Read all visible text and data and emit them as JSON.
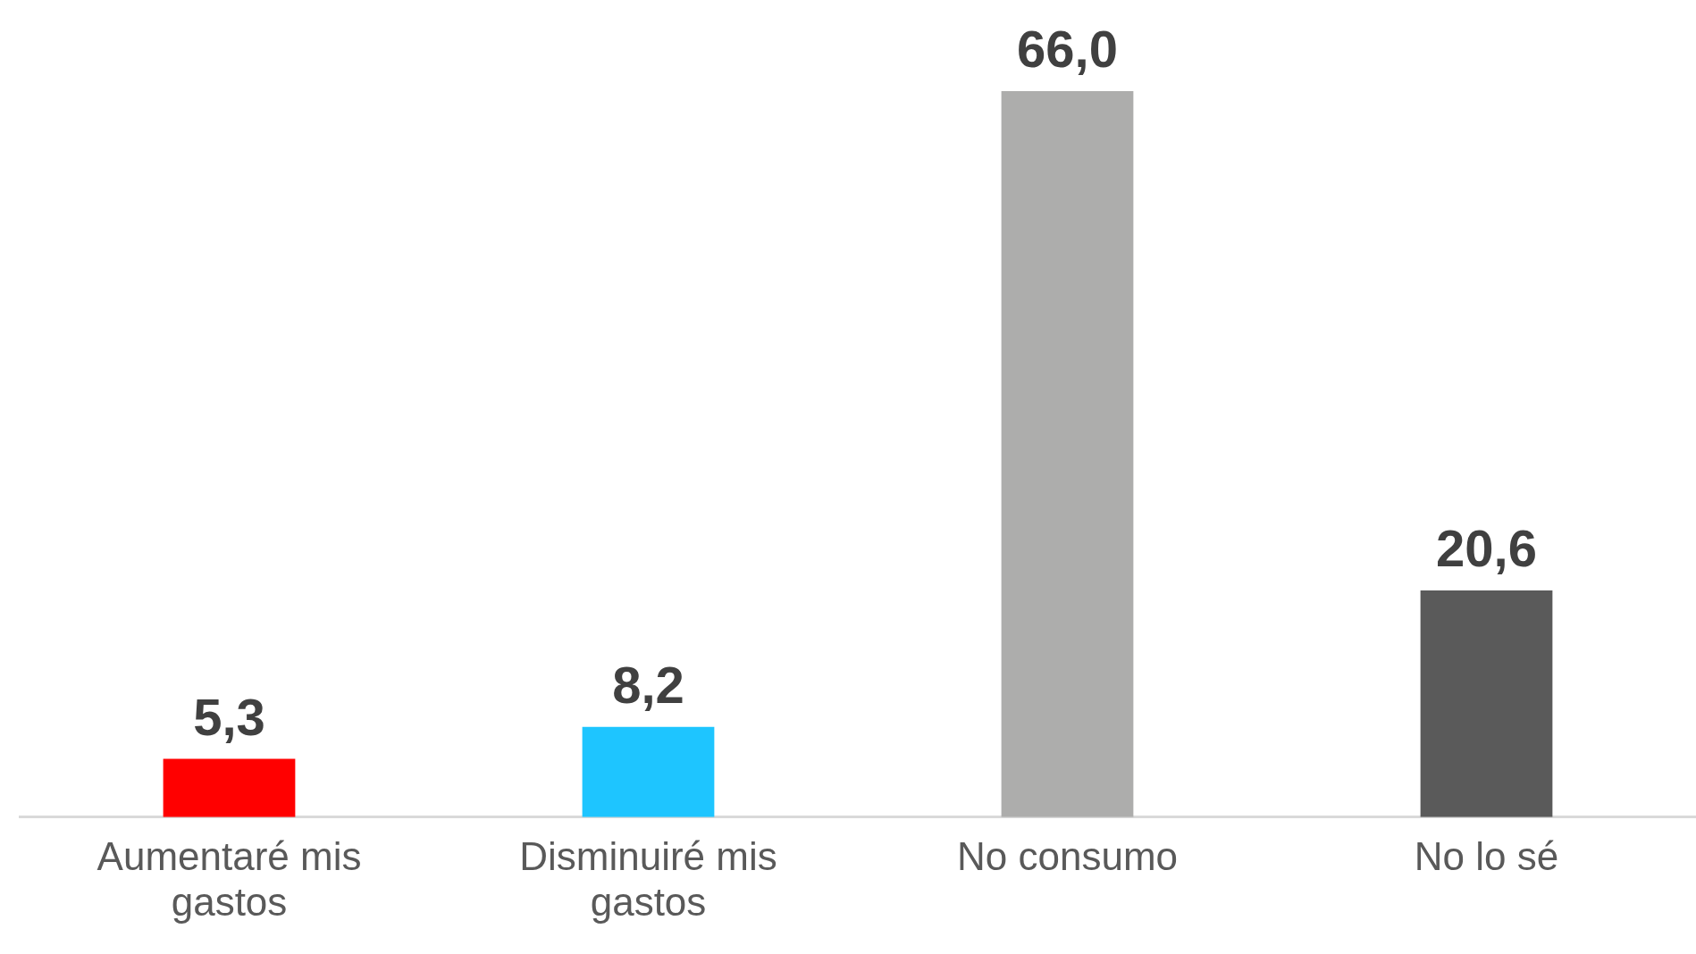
{
  "chart_data": {
    "type": "bar",
    "categories": [
      "Aumentaré mis gastos",
      "Disminuiré mis gastos",
      "No consumo",
      "No lo sé"
    ],
    "values": [
      5.3,
      8.2,
      66.0,
      20.6
    ],
    "colors": [
      "#ff0000",
      "#1ec5ff",
      "#adadac",
      "#5a5a5a"
    ],
    "value_labels": [
      "5,3",
      "8,2",
      "66,0",
      "20,6"
    ],
    "grid": false,
    "legend": false
  }
}
